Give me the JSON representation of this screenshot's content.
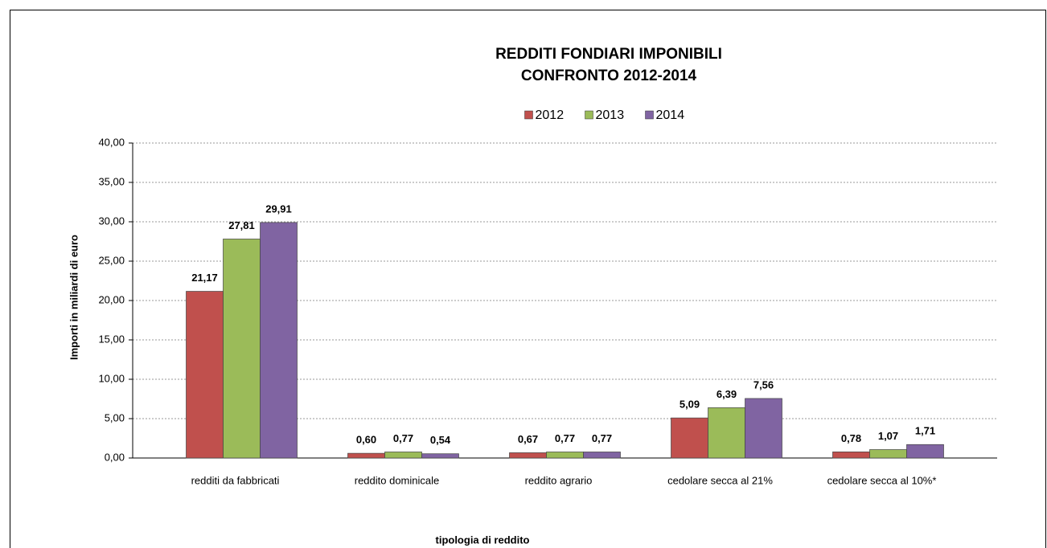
{
  "chart_data": {
    "type": "bar",
    "title": [
      "REDDITI FONDIARI IMPONIBILI",
      "CONFRONTO 2012-2014"
    ],
    "categories": [
      "redditi da fabbricati",
      "reddito dominicale",
      "reddito agrario",
      "cedolare secca al 21%",
      "cedolare secca al 10%*"
    ],
    "series": [
      {
        "name": "2012",
        "color": "#c0504d",
        "values": [
          21.17,
          0.6,
          0.67,
          5.09,
          0.78
        ],
        "value_labels": [
          "21,17",
          "0,60",
          "0,67",
          "5,09",
          "0,78"
        ]
      },
      {
        "name": "2013",
        "color": "#9bbb59",
        "values": [
          27.81,
          0.77,
          0.77,
          6.39,
          1.07
        ],
        "value_labels": [
          "27,81",
          "0,77",
          "0,77",
          "6,39",
          "1,07"
        ]
      },
      {
        "name": "2014",
        "color": "#8064a2",
        "values": [
          29.91,
          0.54,
          0.77,
          7.56,
          1.71
        ],
        "value_labels": [
          "29,91",
          "0,54",
          "0,77",
          "7,56",
          "1,71"
        ]
      }
    ],
    "ylabel": "Importi in miliardi di euro",
    "xlabel": "tipologia di reddito",
    "ylim": [
      0,
      40
    ],
    "yticks": [
      {
        "value": 0,
        "label": "0,00"
      },
      {
        "value": 5,
        "label": "5,00"
      },
      {
        "value": 10,
        "label": "10,00"
      },
      {
        "value": 15,
        "label": "15,00"
      },
      {
        "value": 20,
        "label": "20,00"
      },
      {
        "value": 25,
        "label": "25,00"
      },
      {
        "value": 30,
        "label": "30,00"
      },
      {
        "value": 35,
        "label": "35,00"
      },
      {
        "value": 40,
        "label": "40,00"
      }
    ],
    "grid": true,
    "legend": "top"
  }
}
